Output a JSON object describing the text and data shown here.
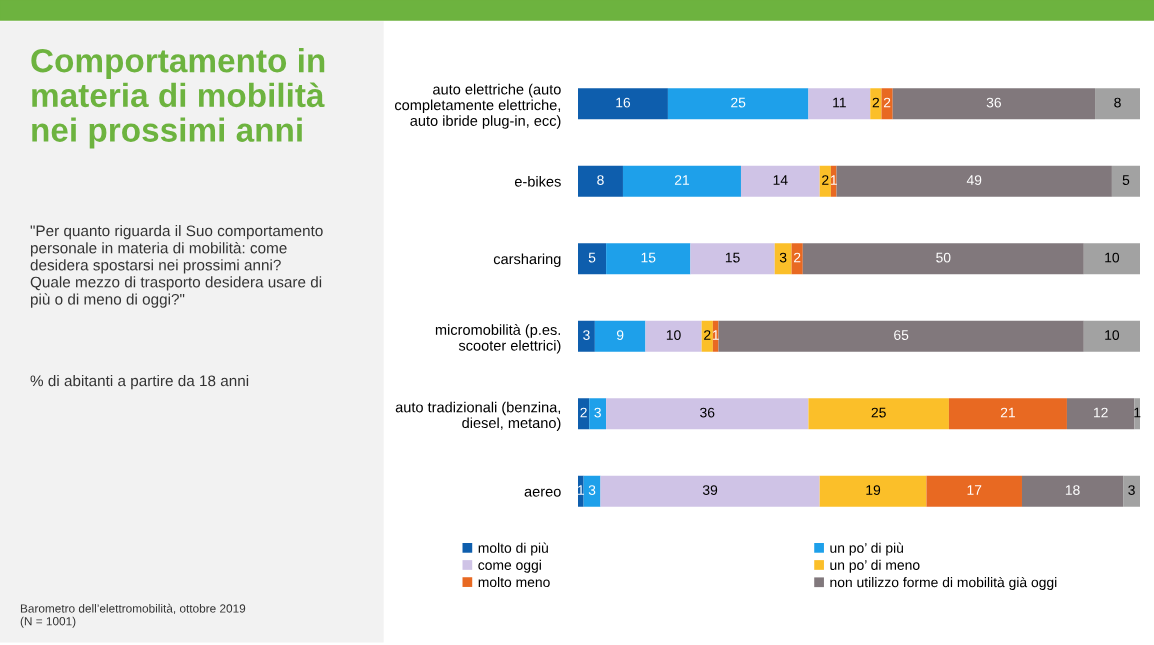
{
  "chart_data": {
    "type": "bar",
    "orientation": "horizontal",
    "stacked": true,
    "data_labels": true,
    "legend": "bottom",
    "grid": false,
    "tick_labels": false,
    "xlim": [
      0,
      100
    ],
    "title": "Comportamento in\nmateria di mobilità\nnei prossimi anni",
    "subtitle": "\"Per quanto riguarda il Suo comportamento\npersonale in materia di mobilità: come\ndesidera spostarsi nei prossimi anni?\nQuale mezzo di trasporto desidera usare di\npiù o di meno di oggi?\"",
    "annotations": [
      "% di abitanti a partire da 18 anni",
      "Barometro dell’elettromobilità, ottobre 2019\n(N = 1001)"
    ],
    "categories": [
      "auto elettriche (auto\ncompletamente elettriche,\nauto ibride plug-in, ecc)",
      "e-bikes",
      "carsharing",
      "micromobilità (p.es.\nscooter elettrici)",
      "auto tradizionali (benzina,\ndiesel, metano)",
      "aereo"
    ],
    "series": [
      {
        "name": "molto di più",
        "color": "#0e5ead",
        "values": [
          16,
          8,
          5,
          3,
          2,
          1
        ]
      },
      {
        "name": "un po’ di più",
        "color": "#1ea0ea",
        "values": [
          25,
          21,
          15,
          9,
          3,
          3
        ]
      },
      {
        "name": "come oggi",
        "color": "#cfc3e6",
        "values": [
          11,
          14,
          15,
          10,
          36,
          39
        ]
      },
      {
        "name": "un po’ di meno",
        "color": "#fbbf29",
        "values": [
          2,
          2,
          3,
          2,
          25,
          19
        ]
      },
      {
        "name": "molto meno",
        "color": "#e86922",
        "values": [
          2,
          1,
          2,
          1,
          21,
          17
        ]
      },
      {
        "name": "non utilizzo forme di mobilità già oggi",
        "color": "#81787c",
        "values": [
          36,
          49,
          50,
          65,
          12,
          18
        ]
      },
      {
        "color": "#a2a2a2",
        "values": [
          8,
          5,
          10,
          10,
          1,
          3
        ]
      }
    ]
  }
}
